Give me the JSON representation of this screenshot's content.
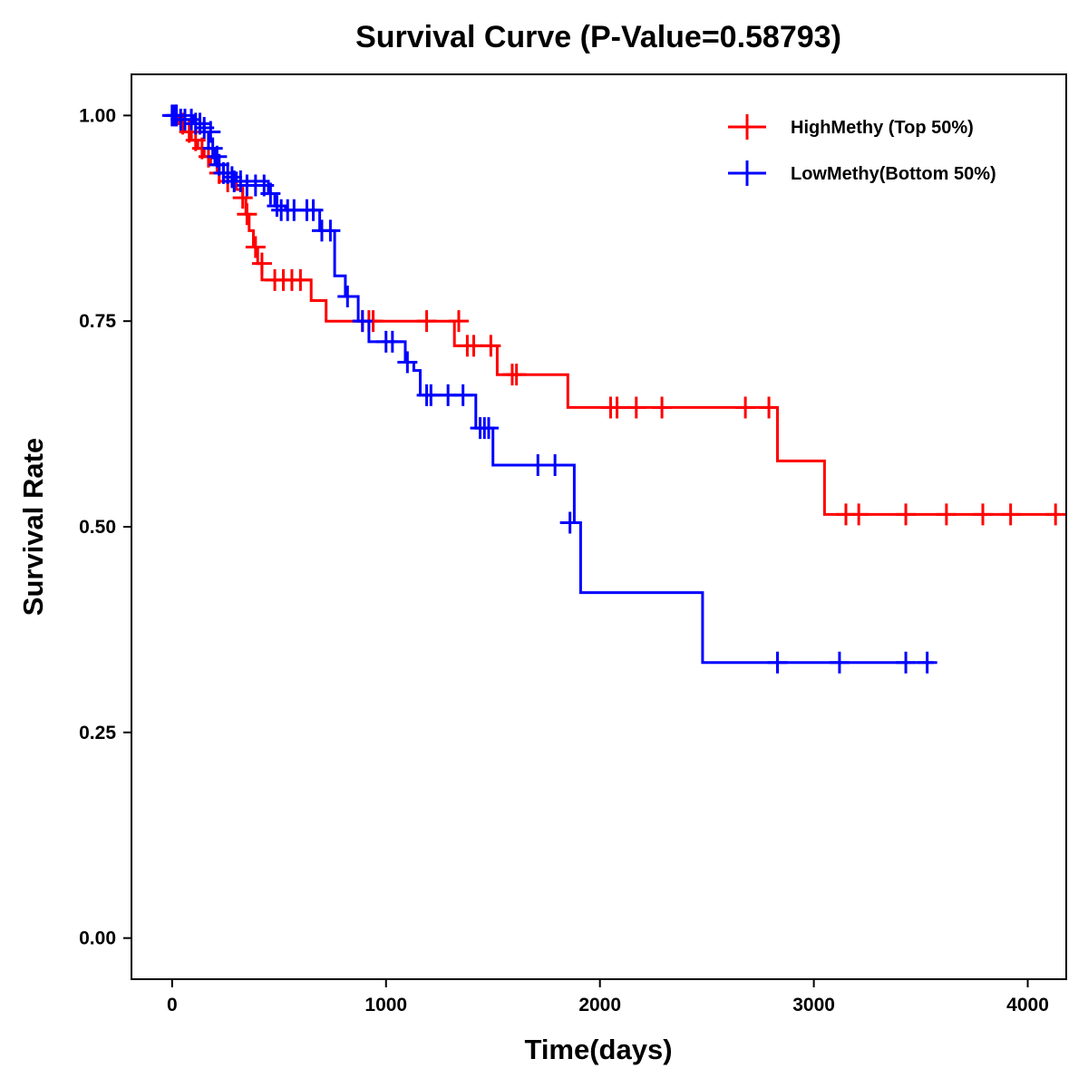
{
  "chart_data": {
    "type": "line",
    "subtype": "kaplan-meier",
    "title": "Survival Curve (P-Value=0.58793)",
    "xlabel": "Time(days)",
    "ylabel": "Survival Rate",
    "xlim": [
      -190,
      4180
    ],
    "ylim": [
      -0.05,
      1.05
    ],
    "xticks": [
      0,
      1000,
      2000,
      3000,
      4000
    ],
    "xtick_labels": [
      "0",
      "1000",
      "2000",
      "3000",
      "4000"
    ],
    "yticks": [
      0,
      0.25,
      0.5,
      0.75,
      1.0
    ],
    "ytick_labels": [
      "0.00",
      "0.25",
      "0.50",
      "0.75",
      "1.00"
    ],
    "legend_position": "top-right",
    "series": [
      {
        "name": "HighMethy (Top 50%)",
        "color": "#ff0000",
        "steps": [
          [
            0,
            1.0
          ],
          [
            30,
            0.99
          ],
          [
            60,
            0.98
          ],
          [
            90,
            0.97
          ],
          [
            120,
            0.96
          ],
          [
            150,
            0.95
          ],
          [
            180,
            0.94
          ],
          [
            210,
            0.93
          ],
          [
            240,
            0.92
          ],
          [
            300,
            0.91
          ],
          [
            330,
            0.9
          ],
          [
            345,
            0.88
          ],
          [
            360,
            0.86
          ],
          [
            380,
            0.84
          ],
          [
            400,
            0.82
          ],
          [
            420,
            0.8
          ],
          [
            650,
            0.775
          ],
          [
            720,
            0.75
          ],
          [
            1320,
            0.72
          ],
          [
            1520,
            0.685
          ],
          [
            1850,
            0.645
          ],
          [
            2830,
            0.58
          ],
          [
            3050,
            0.515
          ]
        ],
        "end_x": 4150,
        "censors": [
          [
            20,
            1.0
          ],
          [
            50,
            0.99
          ],
          [
            80,
            0.98
          ],
          [
            110,
            0.97
          ],
          [
            140,
            0.96
          ],
          [
            170,
            0.95
          ],
          [
            220,
            0.93
          ],
          [
            260,
            0.92
          ],
          [
            330,
            0.9
          ],
          [
            350,
            0.88
          ],
          [
            390,
            0.84
          ],
          [
            420,
            0.82
          ],
          [
            480,
            0.8
          ],
          [
            520,
            0.8
          ],
          [
            560,
            0.8
          ],
          [
            600,
            0.8
          ],
          [
            890,
            0.75
          ],
          [
            920,
            0.75
          ],
          [
            940,
            0.75
          ],
          [
            1190,
            0.75
          ],
          [
            1340,
            0.75
          ],
          [
            1380,
            0.72
          ],
          [
            1410,
            0.72
          ],
          [
            1490,
            0.72
          ],
          [
            1590,
            0.685
          ],
          [
            1610,
            0.685
          ],
          [
            2050,
            0.645
          ],
          [
            2080,
            0.645
          ],
          [
            2170,
            0.645
          ],
          [
            2290,
            0.645
          ],
          [
            2680,
            0.645
          ],
          [
            2790,
            0.645
          ],
          [
            3150,
            0.515
          ],
          [
            3210,
            0.515
          ],
          [
            3430,
            0.515
          ],
          [
            3620,
            0.515
          ],
          [
            3790,
            0.515
          ],
          [
            3920,
            0.515
          ],
          [
            4130,
            0.515
          ]
        ]
      },
      {
        "name": "LowMethy(Bottom 50%)",
        "color": "#0000ff",
        "steps": [
          [
            0,
            1.0
          ],
          [
            100,
            0.99
          ],
          [
            150,
            0.98
          ],
          [
            170,
            0.96
          ],
          [
            200,
            0.94
          ],
          [
            240,
            0.93
          ],
          [
            300,
            0.92
          ],
          [
            450,
            0.905
          ],
          [
            480,
            0.89
          ],
          [
            530,
            0.885
          ],
          [
            690,
            0.86
          ],
          [
            760,
            0.805
          ],
          [
            810,
            0.78
          ],
          [
            870,
            0.75
          ],
          [
            920,
            0.725
          ],
          [
            1090,
            0.7
          ],
          [
            1130,
            0.69
          ],
          [
            1160,
            0.66
          ],
          [
            1420,
            0.62
          ],
          [
            1500,
            0.575
          ],
          [
            1880,
            0.505
          ],
          [
            1910,
            0.42
          ],
          [
            2480,
            0.335
          ]
        ],
        "end_x": 3560,
        "censors": [
          [
            0,
            1.0
          ],
          [
            10,
            1.0
          ],
          [
            20,
            1.0
          ],
          [
            40,
            0.995
          ],
          [
            60,
            0.995
          ],
          [
            90,
            0.995
          ],
          [
            110,
            0.99
          ],
          [
            130,
            0.99
          ],
          [
            150,
            0.985
          ],
          [
            180,
            0.98
          ],
          [
            190,
            0.96
          ],
          [
            210,
            0.95
          ],
          [
            220,
            0.94
          ],
          [
            240,
            0.93
          ],
          [
            260,
            0.93
          ],
          [
            280,
            0.925
          ],
          [
            290,
            0.92
          ],
          [
            320,
            0.92
          ],
          [
            350,
            0.915
          ],
          [
            390,
            0.915
          ],
          [
            430,
            0.915
          ],
          [
            460,
            0.905
          ],
          [
            490,
            0.89
          ],
          [
            510,
            0.885
          ],
          [
            540,
            0.885
          ],
          [
            570,
            0.885
          ],
          [
            630,
            0.885
          ],
          [
            660,
            0.885
          ],
          [
            700,
            0.86
          ],
          [
            740,
            0.86
          ],
          [
            820,
            0.78
          ],
          [
            890,
            0.75
          ],
          [
            1000,
            0.725
          ],
          [
            1030,
            0.725
          ],
          [
            1100,
            0.7
          ],
          [
            1190,
            0.66
          ],
          [
            1210,
            0.66
          ],
          [
            1290,
            0.66
          ],
          [
            1360,
            0.66
          ],
          [
            1440,
            0.62
          ],
          [
            1460,
            0.62
          ],
          [
            1480,
            0.62
          ],
          [
            1710,
            0.575
          ],
          [
            1790,
            0.575
          ],
          [
            1860,
            0.505
          ],
          [
            2830,
            0.335
          ],
          [
            3120,
            0.335
          ],
          [
            3430,
            0.335
          ],
          [
            3530,
            0.335
          ]
        ]
      }
    ]
  }
}
